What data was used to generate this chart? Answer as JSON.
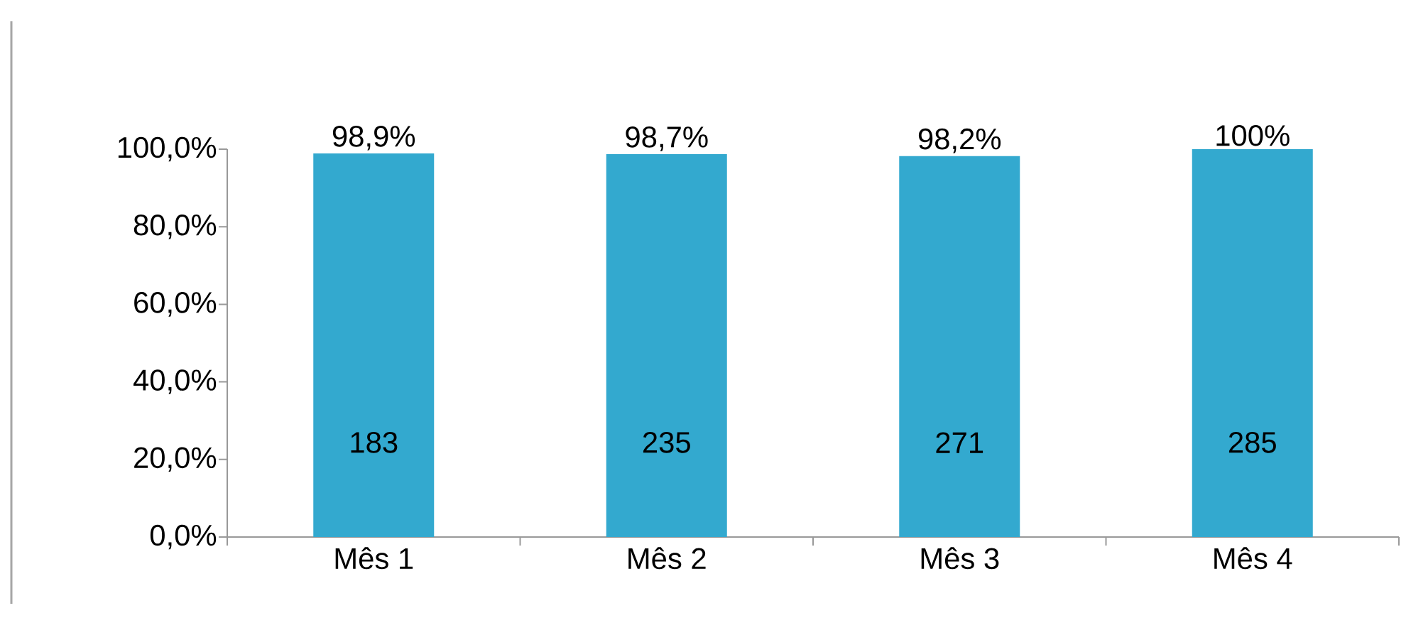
{
  "chart_data": {
    "type": "bar",
    "categories": [
      "Mês 1",
      "Mês 2",
      "Mês 3",
      "Mês 4"
    ],
    "values": [
      98.9,
      98.7,
      98.2,
      100
    ],
    "value_labels": [
      "98,9%",
      "98,7%",
      "98,2%",
      "100%"
    ],
    "color": "#33a9cf",
    "ylim": [
      0,
      100
    ],
    "yticks": [
      {
        "value": 0,
        "label": "0,0%"
      },
      {
        "value": 20,
        "label": "20,0%"
      },
      {
        "value": 40,
        "label": "40,0%"
      },
      {
        "value": 60,
        "label": "60,0%"
      },
      {
        "value": 80,
        "label": "80,0%"
      },
      {
        "value": 100,
        "label": "100,0%"
      }
    ],
    "annotations": [
      "183",
      "235",
      "271",
      "285"
    ],
    "grid": false
  }
}
